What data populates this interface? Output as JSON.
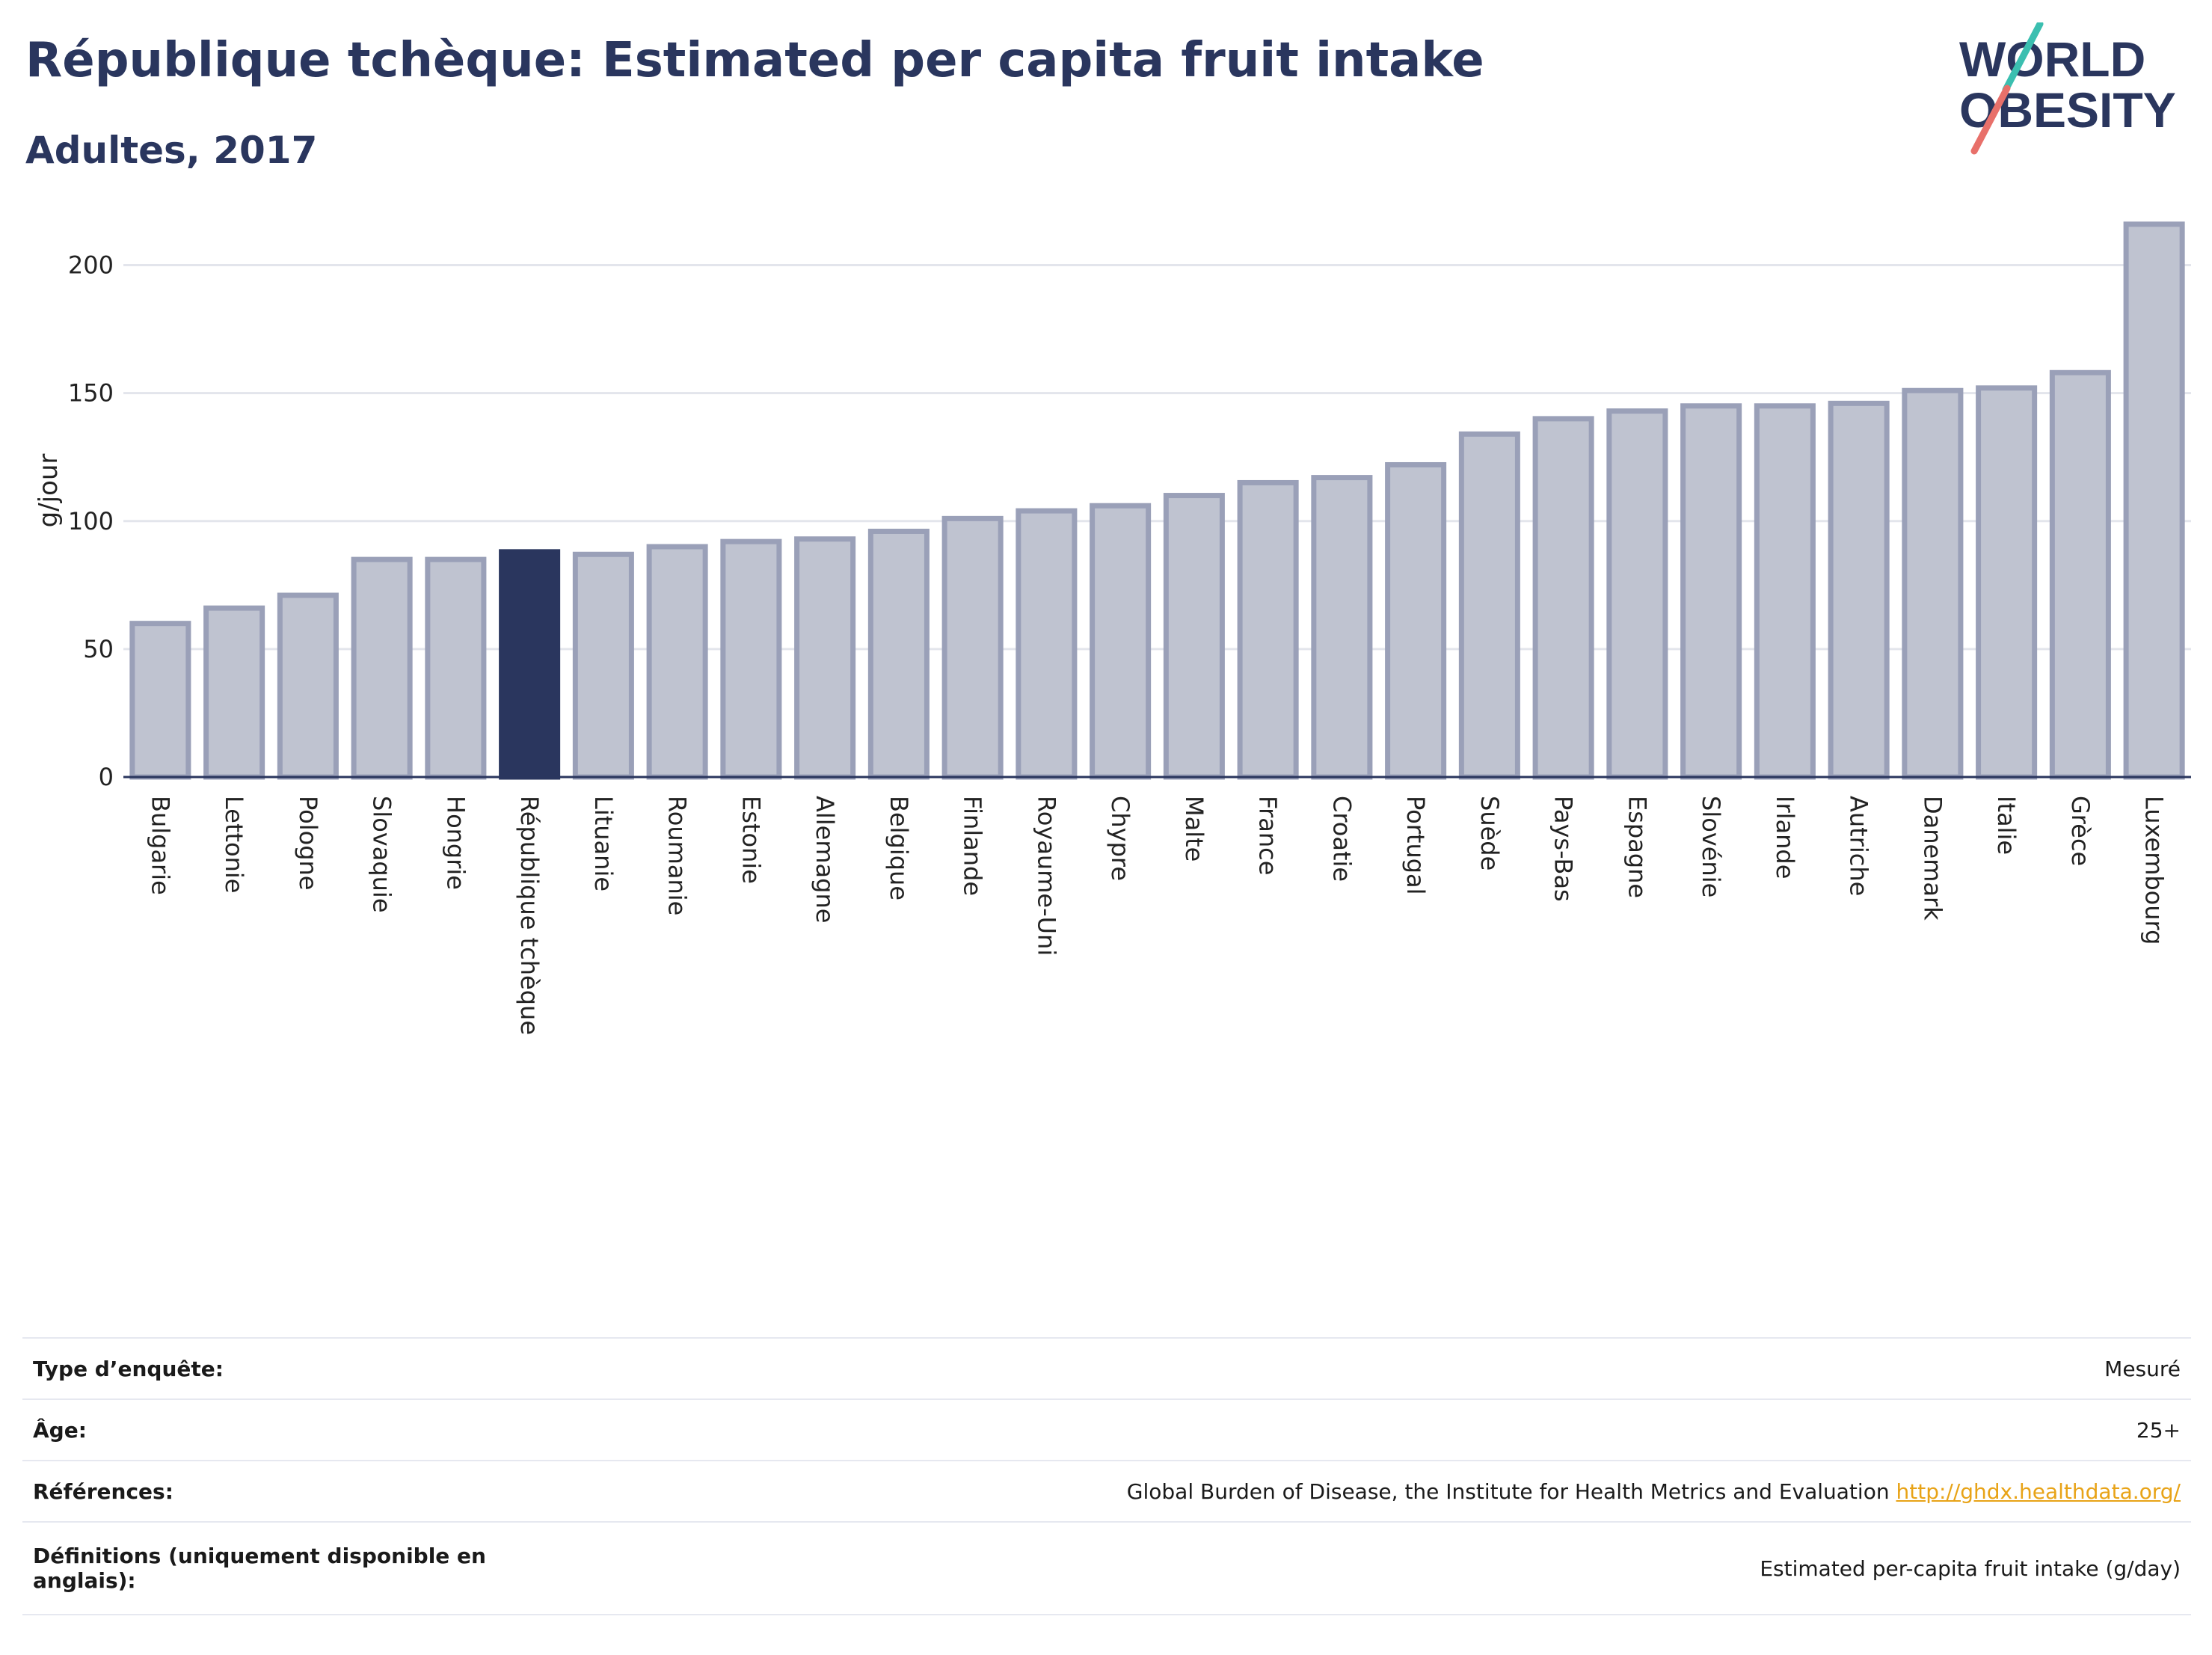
{
  "header": {
    "title": "République tchèque: Estimated per capita fruit intake",
    "subtitle": "Adultes, 2017"
  },
  "logo": {
    "line1": "WORLD",
    "line2": "OBESITY"
  },
  "colors": {
    "highlight_bar": "#2a365e",
    "bar_fill": "#bfc3d0",
    "bar_stroke": "#9aa0b8",
    "text": "#2a365e",
    "link": "#e8a317"
  },
  "chart_data": {
    "type": "bar",
    "title": "République tchèque: Estimated per capita fruit intake",
    "subtitle": "Adultes, 2017",
    "xlabel": "",
    "ylabel": "g/jour",
    "ylim": [
      0,
      225
    ],
    "yticks": [
      0,
      50,
      100,
      150,
      200
    ],
    "grid": true,
    "highlight": "République tchèque",
    "categories": [
      "Bulgarie",
      "Lettonie",
      "Pologne",
      "Slovaquie",
      "Hongrie",
      "République tchèque",
      "Lituanie",
      "Roumanie",
      "Estonie",
      "Allemagne",
      "Belgique",
      "Finlande",
      "Royaume-Uni",
      "Chypre",
      "Malte",
      "France",
      "Croatie",
      "Portugal",
      "Suède",
      "Pays-Bas",
      "Espagne",
      "Slovénie",
      "Irlande",
      "Autriche",
      "Danemark",
      "Italie",
      "Grèce",
      "Luxembourg"
    ],
    "values": [
      60,
      66,
      71,
      85,
      85,
      88,
      87,
      90,
      92,
      93,
      96,
      101,
      104,
      106,
      110,
      115,
      117,
      122,
      134,
      140,
      143,
      145,
      145,
      146,
      151,
      152,
      158,
      216
    ]
  },
  "info": {
    "rows": [
      {
        "label": "Type d’enquête:",
        "value": "Mesuré"
      },
      {
        "label": "Âge:",
        "value": "25+"
      },
      {
        "label": "Références:",
        "value": "Global Burden of Disease, the Institute for Health Metrics and Evaluation",
        "link": "http://ghdx.healthdata.org/"
      },
      {
        "label": "Définitions (uniquement disponible en anglais):",
        "value": "Estimated per-capita fruit intake (g/day)"
      }
    ]
  }
}
